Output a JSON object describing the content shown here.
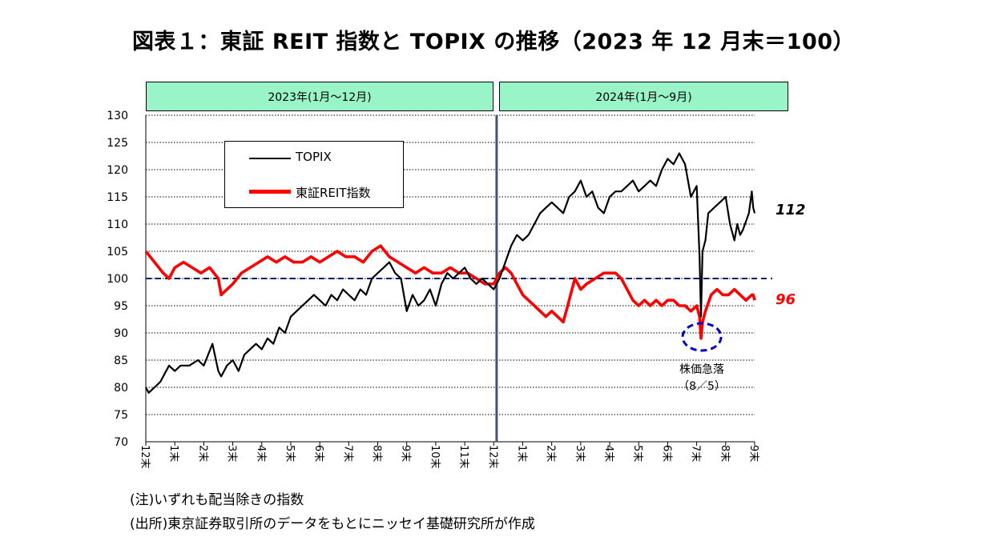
{
  "title": "図表１：東証 REIT 指数と TOPIX の推移（2023 年 12 月末＝100）",
  "periods": [
    "2023年(1月～12月)",
    "2024年(1月～9月)"
  ],
  "legend": {
    "topix": "TOPIX",
    "reit": "東証REIT指数"
  },
  "end_labels": {
    "topix": "112",
    "reit": "96"
  },
  "annotation": {
    "line1": "株価急落",
    "line2": "（8／5）"
  },
  "notes": [
    "(注)いずれも配当除きの指数",
    "(出所)東京証券取引所のデータをもとにニッセイ基礎研究所が作成"
  ],
  "colors": {
    "topix": "#000000",
    "reit": "#ff0000",
    "period_fill": "#99f5c8",
    "baseline": "#002060",
    "circle": "#0000cc",
    "divider": "#44546a"
  },
  "chart_data": {
    "type": "line",
    "ylim": [
      70,
      130
    ],
    "yticks": [
      70,
      75,
      80,
      85,
      90,
      95,
      100,
      105,
      110,
      115,
      120,
      125,
      130
    ],
    "xlim": [
      0,
      21
    ],
    "xticks": [
      {
        "x": 0,
        "label": "12末"
      },
      {
        "x": 1,
        "label": "1末"
      },
      {
        "x": 2,
        "label": "2末"
      },
      {
        "x": 3,
        "label": "3末"
      },
      {
        "x": 4,
        "label": "4末"
      },
      {
        "x": 5,
        "label": "5末"
      },
      {
        "x": 6,
        "label": "6末"
      },
      {
        "x": 7,
        "label": "7末"
      },
      {
        "x": 8,
        "label": "8末"
      },
      {
        "x": 9,
        "label": "9末"
      },
      {
        "x": 10,
        "label": "10末"
      },
      {
        "x": 11,
        "label": "11末"
      },
      {
        "x": 12,
        "label": "12末"
      },
      {
        "x": 13,
        "label": "1末"
      },
      {
        "x": 14,
        "label": "2末"
      },
      {
        "x": 15,
        "label": "3末"
      },
      {
        "x": 16,
        "label": "4末"
      },
      {
        "x": 17,
        "label": "5末"
      },
      {
        "x": 18,
        "label": "6末"
      },
      {
        "x": 19,
        "label": "7末"
      },
      {
        "x": 20,
        "label": "8末"
      },
      {
        "x": 21,
        "label": "9末"
      }
    ],
    "reference_line": 100,
    "divider_x": 12.1,
    "series": [
      {
        "name": "TOPIX",
        "x": [
          0,
          0.1,
          0.3,
          0.5,
          0.8,
          1.0,
          1.2,
          1.5,
          1.8,
          2.0,
          2.15,
          2.3,
          2.5,
          2.6,
          2.8,
          3.0,
          3.2,
          3.4,
          3.6,
          3.8,
          4.0,
          4.2,
          4.4,
          4.6,
          4.8,
          5.0,
          5.2,
          5.4,
          5.6,
          5.8,
          6.0,
          6.2,
          6.4,
          6.6,
          6.8,
          7.0,
          7.2,
          7.4,
          7.6,
          7.8,
          8.0,
          8.2,
          8.4,
          8.6,
          8.8,
          9.0,
          9.2,
          9.4,
          9.6,
          9.8,
          10.0,
          10.2,
          10.4,
          10.6,
          10.8,
          11.0,
          11.2,
          11.4,
          11.6,
          11.8,
          12.0,
          12.2,
          12.4,
          12.6,
          12.8,
          13.0,
          13.2,
          13.4,
          13.6,
          13.8,
          14.0,
          14.2,
          14.4,
          14.6,
          14.8,
          15.0,
          15.2,
          15.4,
          15.6,
          15.8,
          16.0,
          16.2,
          16.4,
          16.6,
          16.8,
          17.0,
          17.2,
          17.4,
          17.6,
          17.8,
          18.0,
          18.2,
          18.4,
          18.6,
          18.8,
          19.0,
          19.1,
          19.15,
          19.2,
          19.3,
          19.4,
          19.6,
          19.8,
          20.0,
          20.15,
          20.3,
          20.4,
          20.5,
          20.6,
          20.8,
          20.9,
          20.95,
          21.0
        ],
        "values": [
          80,
          79,
          80,
          81,
          84,
          83,
          84,
          84,
          85,
          84,
          86,
          88,
          83,
          82,
          84,
          85,
          83,
          86,
          87,
          88,
          87,
          89,
          88,
          91,
          90,
          93,
          94,
          95,
          96,
          97,
          96,
          95,
          97,
          96,
          98,
          97,
          96,
          98,
          97,
          100,
          101,
          102,
          103,
          101,
          100,
          94,
          97,
          95,
          96,
          98,
          95,
          99,
          101,
          100,
          101,
          102,
          100,
          99,
          100,
          99,
          98,
          100,
          103,
          106,
          108,
          107,
          108,
          110,
          112,
          113,
          114,
          113,
          112,
          115,
          116,
          118,
          115,
          116,
          113,
          112,
          115,
          116,
          116,
          117,
          118,
          116,
          117,
          118,
          117,
          120,
          122,
          121,
          123,
          121,
          115,
          117,
          104,
          93,
          105,
          107,
          112,
          113,
          114,
          115,
          110,
          107,
          110,
          108,
          109,
          112,
          116,
          113,
          112
        ]
      },
      {
        "name": "東証REIT指数",
        "x": [
          0,
          0.3,
          0.6,
          0.8,
          1.0,
          1.3,
          1.6,
          1.9,
          2.2,
          2.5,
          2.6,
          2.8,
          3.0,
          3.3,
          3.6,
          3.9,
          4.2,
          4.5,
          4.8,
          5.1,
          5.4,
          5.7,
          6.0,
          6.3,
          6.6,
          6.9,
          7.2,
          7.5,
          7.8,
          8.1,
          8.4,
          8.7,
          9.0,
          9.3,
          9.6,
          9.9,
          10.2,
          10.5,
          10.8,
          11.1,
          11.4,
          11.7,
          12.0,
          12.2,
          12.4,
          12.6,
          12.8,
          13.0,
          13.2,
          13.4,
          13.6,
          13.8,
          14.0,
          14.2,
          14.4,
          14.6,
          14.8,
          15.0,
          15.2,
          15.5,
          15.8,
          16.0,
          16.2,
          16.4,
          16.6,
          16.8,
          17.0,
          17.2,
          17.4,
          17.6,
          17.8,
          18.0,
          18.2,
          18.4,
          18.6,
          18.8,
          19.0,
          19.1,
          19.15,
          19.2,
          19.3,
          19.5,
          19.7,
          19.9,
          20.1,
          20.3,
          20.5,
          20.7,
          20.9,
          20.95,
          21.0
        ],
        "values": [
          105,
          103,
          101,
          100,
          102,
          103,
          102,
          101,
          102,
          100,
          97,
          98,
          99,
          101,
          102,
          103,
          104,
          103,
          104,
          103,
          103,
          104,
          103,
          104,
          105,
          104,
          104,
          103,
          105,
          106,
          104,
          103,
          102,
          101,
          102,
          101,
          101,
          102,
          101,
          101,
          100,
          99,
          99,
          101,
          102,
          101,
          99,
          97,
          96,
          95,
          94,
          93,
          94,
          93,
          92,
          96,
          100,
          98,
          99,
          100,
          101,
          101,
          101,
          100,
          98,
          96,
          95,
          96,
          95,
          96,
          95,
          96,
          96,
          95,
          95,
          94,
          95,
          93,
          89,
          92,
          94,
          97,
          98,
          97,
          97,
          98,
          97,
          96,
          97,
          97,
          96
        ]
      }
    ]
  }
}
